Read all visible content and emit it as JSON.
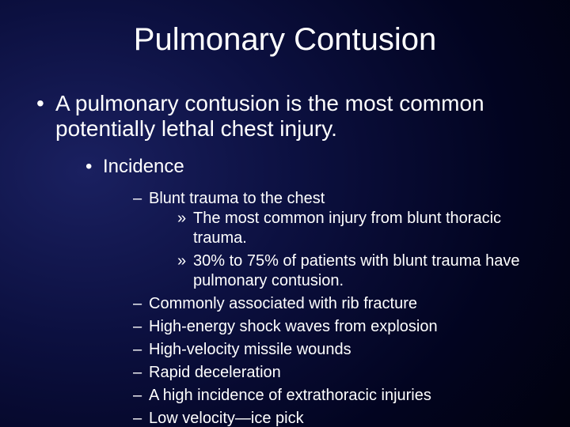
{
  "title": "Pulmonary Contusion",
  "colors": {
    "background_gradient_inner": "#1a2060",
    "background_gradient_outer": "#000000",
    "text": "#ffffff"
  },
  "typography": {
    "title_fontsize": 40,
    "lvl1_fontsize": 28,
    "lvl2_fontsize": 24,
    "lvl3_fontsize": 20,
    "lvl4_fontsize": 20,
    "font_family": "Arial"
  },
  "content": {
    "lvl1": "A pulmonary contusion is the most common potentially lethal chest injury.",
    "lvl2": "Incidence",
    "lvl3": [
      "Blunt trauma to the chest",
      "Commonly associated with rib fracture",
      "High-energy shock waves from explosion",
      "High-velocity missile wounds",
      "Rapid deceleration",
      "A high incidence of extrathoracic injuries",
      "Low velocity—ice pick"
    ],
    "lvl4": [
      "The most common injury from blunt thoracic trauma.",
      "30% to 75% of patients with blunt trauma have pulmonary contusion."
    ]
  }
}
